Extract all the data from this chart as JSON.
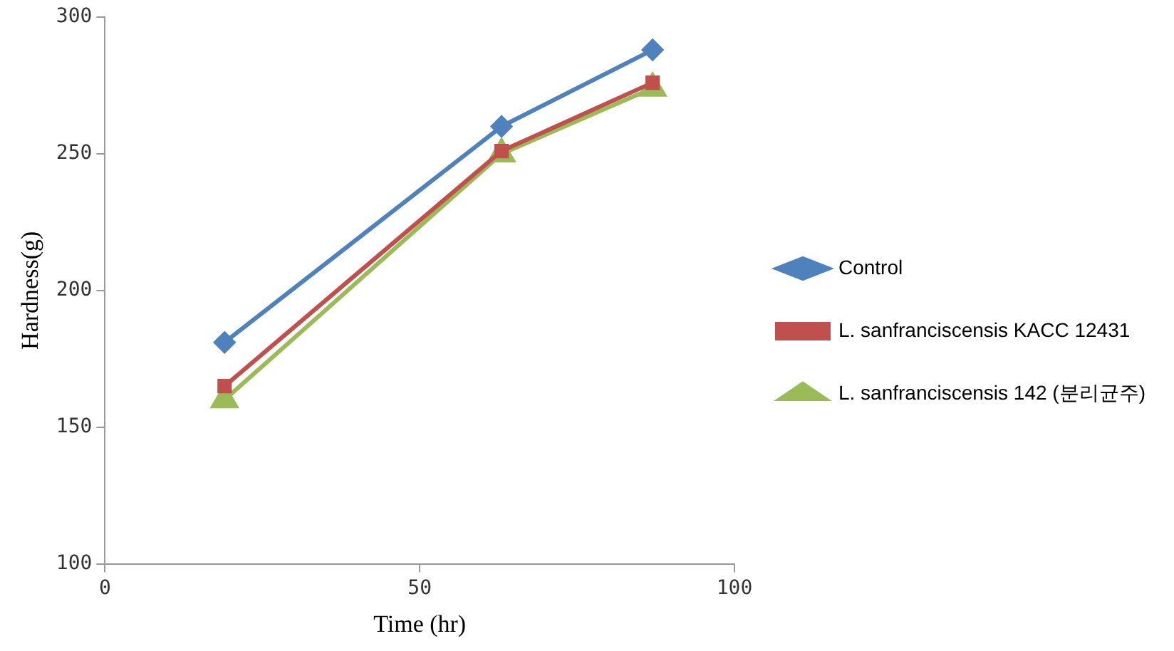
{
  "chart_data": {
    "type": "line",
    "xlabel": "Time (hr)",
    "ylabel": "Hardness(g)",
    "xlim": [
      0,
      100
    ],
    "xticks": [
      0,
      50,
      100
    ],
    "ylim": [
      100,
      300
    ],
    "yticks": [
      100,
      150,
      200,
      250,
      300
    ],
    "grid": false,
    "legend": "right",
    "line_style": "solid",
    "series": [
      {
        "name": "Control",
        "color": "#4f81bd",
        "marker": "diamond",
        "x": [
          19,
          63,
          87
        ],
        "values": [
          181,
          260,
          288
        ]
      },
      {
        "name": "L. sanfranciscensis KACC 12431",
        "color": "#c0504d",
        "marker": "square",
        "x": [
          19,
          63,
          87
        ],
        "values": [
          165,
          251,
          276
        ]
      },
      {
        "name": "L. sanfranciscensis 142 (분리균주)",
        "color": "#9bbb59",
        "marker": "triangle",
        "x": [
          19,
          63,
          87
        ],
        "values": [
          160,
          250,
          274
        ]
      }
    ]
  }
}
